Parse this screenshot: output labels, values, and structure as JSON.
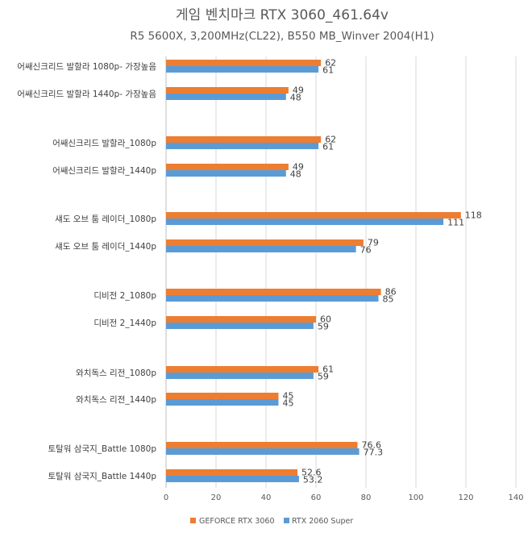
{
  "chart_data": {
    "type": "bar",
    "orientation": "horizontal",
    "title": "게임 벤치마크 RTX 3060_461.64v",
    "subtitle": "R5 5600X, 3,200MHz(CL22), B550 MB_Winver 2004(H1)",
    "categories": [
      "어쌔신크리드 발할라 1080p- 가장높음",
      "어쌔신크리드 발할라 1440p- 가장높음",
      "어쌔신크리드 발할라_1080p",
      "어쌔신크리드 발할라_1440p",
      "섀도 오브 툼 레이더_1080p",
      "섀도 오브 툼 레이더_1440p",
      "디비전 2_1080p",
      "디비전 2_1440p",
      "와치독스 리전_1080p",
      "와치독스 리전_1440p",
      "토탈워 삼국지_Battle 1080p",
      "토탈워 삼국지_Battle 1440p"
    ],
    "series": [
      {
        "name": "GEFORCE RTX 3060",
        "color": "#ed7d31",
        "values": [
          62,
          49,
          62,
          49,
          118,
          79,
          86,
          60,
          61,
          45,
          76.6,
          52.6
        ]
      },
      {
        "name": "RTX 2060 Super",
        "color": "#5b9bd5",
        "values": [
          61,
          48,
          61,
          48,
          111,
          76,
          85,
          59,
          59,
          45,
          77.3,
          53.2
        ]
      }
    ],
    "xlim": [
      0,
      140
    ],
    "xticks": [
      "0",
      "20",
      "40",
      "60",
      "80",
      "100",
      "120",
      "140"
    ],
    "grid": true,
    "legend_position": "bottom"
  }
}
